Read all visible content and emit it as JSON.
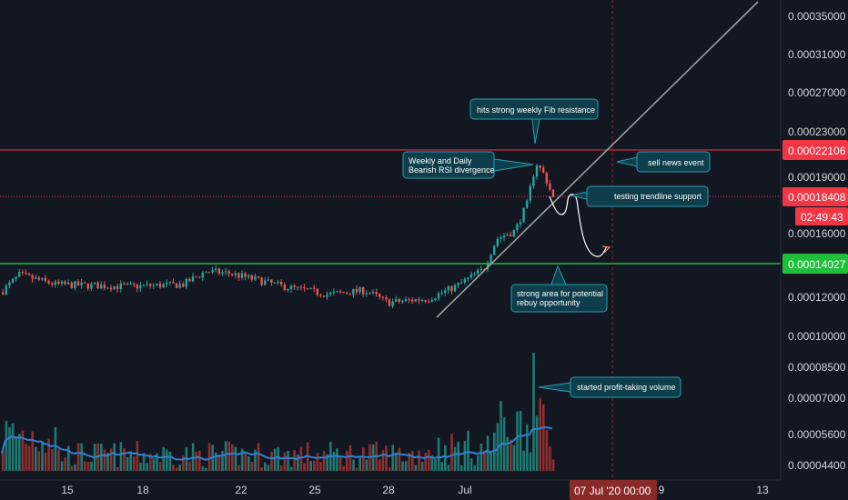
{
  "chart_data": {
    "type": "candlestick",
    "price_axis": {
      "ticks": [
        "0.00035000",
        "0.00031000",
        "0.00027000",
        "0.00023000",
        "0.00019000",
        "0.00016000",
        "0.00012000",
        "0.00010000",
        "0.00008500",
        "0.00007000",
        "0.00005600",
        "0.00004400"
      ]
    },
    "time_axis": {
      "ticks": [
        "15",
        "18",
        "22",
        "25",
        "28",
        "Jul",
        "9",
        "13"
      ],
      "cursor_label": "07 Jul '20   00:00"
    },
    "horizontal_levels": [
      {
        "label": "0.00022106",
        "value": 0.00022106,
        "color": "#f23645"
      },
      {
        "label": "0.00018408",
        "value": 0.00018408,
        "color": "#f23645",
        "countdown": "02:49:43"
      },
      {
        "label": "0.00014027",
        "value": 0.00014027,
        "color": "#22ab94"
      }
    ],
    "annotations": [
      "hits strong weekly Fib resistance",
      "Weekly and Daily Bearish RSI divergence",
      "sell news event",
      "testing trendline support",
      "strong area for potential rebuy opportunity",
      "started profit-taking volume"
    ],
    "colors": {
      "up": "#26a69a",
      "down": "#ef5350",
      "background": "#131722",
      "note_fill": "#0e3d4c",
      "note_border": "#2a9dad",
      "trendline": "#9e9e9e",
      "volume_ma": "#2f80d2",
      "cursor": "#8b2a2a"
    }
  }
}
